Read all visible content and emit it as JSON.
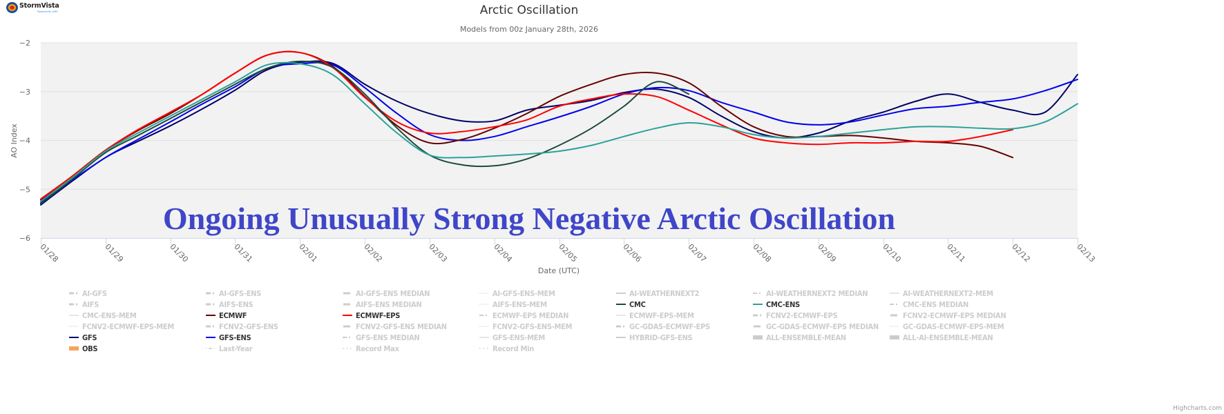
{
  "logo": {
    "name": "StormVista",
    "tagline": "Powered By GMS"
  },
  "header": {
    "title": "Arctic Oscillation",
    "subtitle": "Models from 00z January 28th, 2026"
  },
  "annotation": "Ongoing Unusually Strong Negative Arctic Oscillation",
  "credits": "Highcharts.com",
  "chart_data": {
    "type": "line",
    "title": "Arctic Oscillation",
    "subtitle": "Models from 00z January 28th, 2026",
    "xlabel": "Date (UTC)",
    "ylabel": "AO Index",
    "ylim": [
      -6,
      -2
    ],
    "yticks": [
      -2,
      -3,
      -4,
      -5,
      -6
    ],
    "ytick_labels": [
      "−2",
      "−3",
      "−4",
      "−5",
      "−6"
    ],
    "xlim": [
      0,
      16
    ],
    "x_unit": "days since 01/28",
    "xtick_labels": [
      "01/28",
      "01/29",
      "01/30",
      "01/31",
      "02/01",
      "02/02",
      "02/03",
      "02/04",
      "02/05",
      "02/06",
      "02/07",
      "02/08",
      "02/09",
      "02/10",
      "02/11",
      "02/12",
      "02/13"
    ],
    "grid": true,
    "legend_position": "bottom",
    "series": [
      {
        "name": "GFS",
        "color": "#000066",
        "x": [
          0,
          0.5,
          1,
          1.5,
          2,
          2.5,
          3,
          3.5,
          4,
          4.5,
          5,
          5.5,
          6,
          6.5,
          7,
          7.5,
          8,
          8.5,
          9,
          9.5,
          10,
          10.5,
          11,
          11.5,
          12,
          12.5,
          13,
          13.5,
          14,
          14.5,
          15,
          15.5,
          16
        ],
        "values": [
          -5.32,
          -4.82,
          -4.35,
          -4.02,
          -3.7,
          -3.35,
          -2.97,
          -2.55,
          -2.4,
          -2.42,
          -2.85,
          -3.2,
          -3.45,
          -3.6,
          -3.6,
          -3.38,
          -3.28,
          -3.18,
          -3.02,
          -2.95,
          -3.12,
          -3.5,
          -3.82,
          -3.95,
          -3.85,
          -3.6,
          -3.42,
          -3.2,
          -3.05,
          -3.22,
          -3.38,
          -3.42,
          -2.65
        ]
      },
      {
        "name": "GFS-ENS",
        "color": "#0000ee",
        "x": [
          0,
          0.5,
          1,
          1.5,
          2,
          2.5,
          3,
          3.5,
          4,
          4.5,
          5,
          5.5,
          6,
          6.5,
          7,
          7.5,
          8,
          8.5,
          9,
          9.5,
          10,
          10.5,
          11,
          11.5,
          12,
          12.5,
          13,
          13.5,
          14,
          14.5,
          15,
          15.5,
          16
        ],
        "values": [
          -5.28,
          -4.8,
          -4.35,
          -3.98,
          -3.62,
          -3.25,
          -2.9,
          -2.52,
          -2.43,
          -2.45,
          -2.92,
          -3.45,
          -3.88,
          -4.0,
          -3.92,
          -3.72,
          -3.52,
          -3.3,
          -3.05,
          -2.92,
          -2.98,
          -3.22,
          -3.42,
          -3.62,
          -3.68,
          -3.62,
          -3.48,
          -3.35,
          -3.3,
          -3.22,
          -3.15,
          -2.98,
          -2.75
        ]
      },
      {
        "name": "ECMWF",
        "color": "#660000",
        "x": [
          0,
          0.5,
          1,
          1.5,
          2,
          2.5,
          3,
          3.5,
          4,
          4.5,
          5,
          5.5,
          6,
          6.5,
          7,
          7.5,
          8,
          8.5,
          9,
          9.5,
          10,
          10.5,
          11,
          11.5,
          12,
          12.5,
          13,
          13.5,
          14,
          14.5,
          15
        ],
        "values": [
          -5.22,
          -4.72,
          -4.2,
          -3.8,
          -3.45,
          -3.05,
          -2.62,
          -2.25,
          -2.2,
          -2.48,
          -3.1,
          -3.7,
          -4.05,
          -3.98,
          -3.75,
          -3.45,
          -3.1,
          -2.85,
          -2.65,
          -2.62,
          -2.82,
          -3.3,
          -3.72,
          -3.92,
          -3.92,
          -3.9,
          -3.95,
          -4.02,
          -4.05,
          -4.12,
          -4.35
        ]
      },
      {
        "name": "ECMWF-EPS",
        "color": "#ff0000",
        "x": [
          0,
          0.5,
          1,
          1.5,
          2,
          2.5,
          3,
          3.5,
          4,
          4.5,
          5,
          5.5,
          6,
          6.5,
          7,
          7.5,
          8,
          8.5,
          9,
          9.5,
          10,
          10.5,
          11,
          11.5,
          12,
          12.5,
          13,
          13.5,
          14,
          14.5,
          15
        ],
        "values": [
          -5.2,
          -4.72,
          -4.2,
          -3.78,
          -3.42,
          -3.05,
          -2.62,
          -2.25,
          -2.2,
          -2.5,
          -3.12,
          -3.62,
          -3.85,
          -3.82,
          -3.72,
          -3.58,
          -3.3,
          -3.15,
          -3.05,
          -3.1,
          -3.38,
          -3.68,
          -3.95,
          -4.05,
          -4.08,
          -4.05,
          -4.05,
          -4.02,
          -4.02,
          -3.92,
          -3.78
        ]
      },
      {
        "name": "CMC",
        "color": "#1a4a3a",
        "x": [
          0,
          0.5,
          1,
          1.5,
          2,
          2.5,
          3,
          3.5,
          4,
          4.5,
          5,
          5.5,
          6,
          6.5,
          7,
          7.5,
          8,
          8.5,
          9,
          9.5,
          10
        ],
        "values": [
          -5.3,
          -4.78,
          -4.25,
          -3.9,
          -3.55,
          -3.2,
          -2.85,
          -2.52,
          -2.38,
          -2.5,
          -3.05,
          -3.75,
          -4.3,
          -4.5,
          -4.52,
          -4.38,
          -4.1,
          -3.75,
          -3.3,
          -2.8,
          -3.05
        ]
      },
      {
        "name": "CMC-ENS",
        "color": "#2aa198",
        "x": [
          0,
          0.5,
          1,
          1.5,
          2,
          2.5,
          3,
          3.5,
          4,
          4.5,
          5,
          5.5,
          6,
          6.5,
          7,
          7.5,
          8,
          8.5,
          9,
          9.5,
          10,
          10.5,
          11,
          11.5,
          12,
          12.5,
          13,
          13.5,
          14,
          14.5,
          15,
          15.5,
          16
        ],
        "values": [
          -5.25,
          -4.75,
          -4.22,
          -3.85,
          -3.5,
          -3.15,
          -2.8,
          -2.45,
          -2.43,
          -2.65,
          -3.25,
          -3.85,
          -4.3,
          -4.35,
          -4.32,
          -4.28,
          -4.22,
          -4.1,
          -3.92,
          -3.75,
          -3.64,
          -3.72,
          -3.88,
          -3.95,
          -3.92,
          -3.85,
          -3.78,
          -3.72,
          -3.72,
          -3.75,
          -3.76,
          -3.62,
          -3.25
        ]
      }
    ],
    "legend": [
      {
        "label": "AI-GFS",
        "style": "dash-dot",
        "active": false
      },
      {
        "label": "AI-GFS-ENS",
        "style": "dash-dot",
        "active": false
      },
      {
        "label": "AI-GFS-ENS MEDIAN",
        "style": "thick",
        "active": false
      },
      {
        "label": "AI-GFS-ENS-MEM",
        "style": "dotted",
        "active": false
      },
      {
        "label": "AI-WEATHERNEXT2",
        "style": "solid",
        "active": false
      },
      {
        "label": "AI-WEATHERNEXT2 MEDIAN",
        "style": "long-dash-dot",
        "active": false
      },
      {
        "label": "AI-WEATHERNEXT2-MEM",
        "style": "thin",
        "active": false
      },
      {
        "label": "AIFS",
        "style": "dash-dot",
        "active": false
      },
      {
        "label": "AIFS-ENS",
        "style": "dash-dot",
        "active": false
      },
      {
        "label": "AIFS-ENS MEDIAN",
        "style": "thick",
        "active": false
      },
      {
        "label": "AIFS-ENS-MEM",
        "style": "dotted",
        "active": false
      },
      {
        "label": "CMC",
        "style": "solid",
        "active": true,
        "color": "#1a4a3a"
      },
      {
        "label": "CMC-ENS",
        "style": "solid",
        "active": true,
        "color": "#2aa198"
      },
      {
        "label": "CMC-ENS MEDIAN",
        "style": "long-dash-dot",
        "active": false
      },
      {
        "label": "CMC-ENS-MEM",
        "style": "thin",
        "active": false
      },
      {
        "label": "ECMWF",
        "style": "solid",
        "active": true,
        "color": "#660000"
      },
      {
        "label": "ECMWF-EPS",
        "style": "solid",
        "active": true,
        "color": "#ff0000"
      },
      {
        "label": "ECMWF-EPS MEDIAN",
        "style": "long-dash-dot",
        "active": false
      },
      {
        "label": "ECMWF-EPS-MEM",
        "style": "thin",
        "active": false
      },
      {
        "label": "FCNV2-ECMWF-EPS",
        "style": "dash-dot",
        "active": false
      },
      {
        "label": "FCNV2-ECMWF-EPS MEDIAN",
        "style": "thick",
        "active": false
      },
      {
        "label": "FCNV2-ECMWF-EPS-MEM",
        "style": "dotted",
        "active": false
      },
      {
        "label": "FCNV2-GFS-ENS",
        "style": "dash-dot",
        "active": false
      },
      {
        "label": "FCNV2-GFS-ENS MEDIAN",
        "style": "thick",
        "active": false
      },
      {
        "label": "FCNV2-GFS-ENS-MEM",
        "style": "dotted",
        "active": false
      },
      {
        "label": "GC-GDAS-ECMWF-EPS",
        "style": "dash-dot",
        "active": false
      },
      {
        "label": "GC-GDAS-ECMWF-EPS MEDIAN",
        "style": "thick",
        "active": false
      },
      {
        "label": "GC-GDAS-ECMWF-EPS-MEM",
        "style": "dotted",
        "active": false
      },
      {
        "label": "GFS",
        "style": "solid",
        "active": true,
        "color": "#000066"
      },
      {
        "label": "GFS-ENS",
        "style": "solid",
        "active": true,
        "color": "#0000ee"
      },
      {
        "label": "GFS-ENS MEDIAN",
        "style": "long-dash-dot",
        "active": false
      },
      {
        "label": "GFS-ENS-MEM",
        "style": "thin",
        "active": false
      },
      {
        "label": "HYBRID-GFS-ENS",
        "style": "solid",
        "active": false
      },
      {
        "label": "ALL-ENSEMBLE-MEAN",
        "style": "block",
        "active": false
      },
      {
        "label": "ALL-AI-ENSEMBLE-MEAN",
        "style": "block",
        "active": false
      },
      {
        "label": "OBS",
        "style": "block",
        "active": true,
        "color": "#f7a35c"
      },
      {
        "label": "Last-Year",
        "style": "dot-dash",
        "active": false
      },
      {
        "label": "Record Max",
        "style": "dots",
        "active": false
      },
      {
        "label": "Record Min",
        "style": "dots",
        "active": false
      }
    ]
  }
}
